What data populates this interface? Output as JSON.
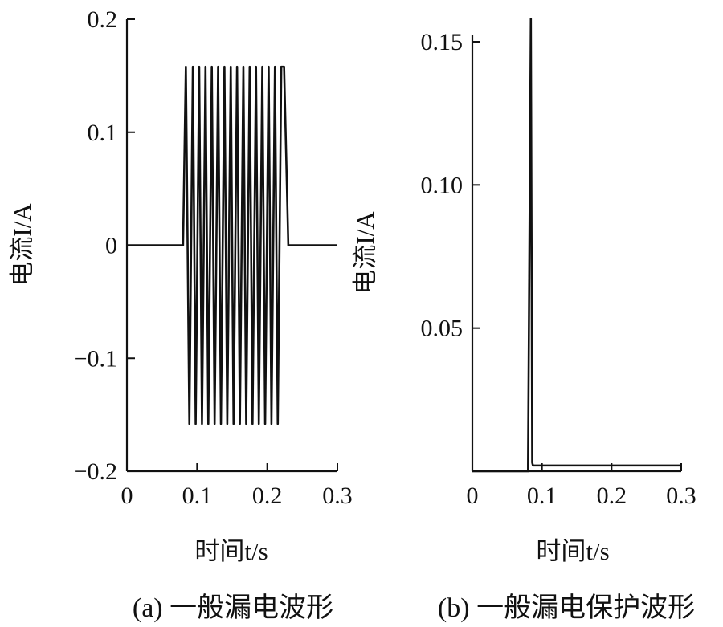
{
  "chart_data": [
    {
      "type": "line",
      "panel": "(a)",
      "caption": "(a) 一般漏电波形",
      "xlabel": "时间t/s",
      "ylabel": "电流I/A",
      "xlim": [
        0,
        0.3
      ],
      "ylim": [
        -0.2,
        0.2
      ],
      "xticks": [
        "0",
        "0.1",
        "0.2",
        "0.3"
      ],
      "yticks": [
        "0.2",
        "0.1",
        "0",
        "−0.1",
        "−0.2"
      ],
      "grid": false,
      "series": [
        {
          "x": [
            0,
            0.08,
            0.084,
            0.089,
            0.094,
            0.098,
            0.103,
            0.107,
            0.112,
            0.116,
            0.121,
            0.125,
            0.13,
            0.134,
            0.139,
            0.143,
            0.148,
            0.152,
            0.157,
            0.161,
            0.166,
            0.17,
            0.175,
            0.179,
            0.184,
            0.188,
            0.193,
            0.197,
            0.202,
            0.206,
            0.211,
            0.215,
            0.22,
            0.224,
            0.23,
            0.3
          ],
          "y": [
            0,
            0,
            0.158,
            -0.158,
            0.158,
            -0.158,
            0.158,
            -0.158,
            0.158,
            -0.158,
            0.158,
            -0.158,
            0.158,
            -0.158,
            0.158,
            -0.158,
            0.158,
            -0.158,
            0.158,
            -0.158,
            0.158,
            -0.158,
            0.158,
            -0.158,
            0.158,
            -0.158,
            0.158,
            -0.158,
            0.158,
            -0.158,
            0.158,
            -0.158,
            0.158,
            0.158,
            0,
            0
          ]
        }
      ]
    },
    {
      "type": "line",
      "panel": "(b)",
      "caption": "(b) 一般漏电保护波形",
      "xlabel": "时间t/s",
      "ylabel": "电流I/A",
      "xlim": [
        0,
        0.3
      ],
      "ylim": [
        0,
        0.16
      ],
      "xticks": [
        "0",
        "0.1",
        "0.2",
        "0.3"
      ],
      "yticks": [
        "0.15",
        "0.10",
        "0.05"
      ],
      "grid": false,
      "series": [
        {
          "x": [
            0,
            0.08,
            0.08,
            0.084,
            0.086,
            0.087,
            0.3
          ],
          "y": [
            0,
            0,
            0.002,
            0.158,
            0.003,
            0.002,
            0.002
          ]
        }
      ]
    }
  ]
}
